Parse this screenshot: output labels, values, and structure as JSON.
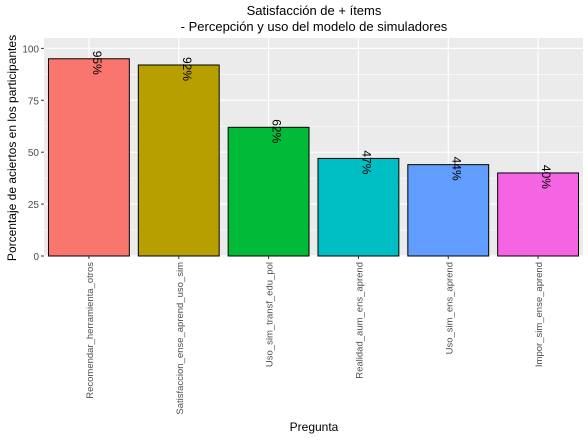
{
  "chart_data": {
    "type": "bar",
    "title_lines": [
      "Satisfacción de + ítems",
      "- Percepción y uso del modelo de simuladores"
    ],
    "xlabel": "Pregunta",
    "ylabel": "Porcentaje de aciertos en los participantes",
    "ylim": [
      0,
      105
    ],
    "yticks": [
      0,
      25,
      50,
      75,
      100
    ],
    "grid": true,
    "legend": "none",
    "categories": [
      "Recomendar_herramienta_otros",
      "Satisfaccion_ense_aprend_uso_sim",
      "Uso_sim_transf_edu_pol",
      "Realidad_aum_ens_aprend",
      "Uso_sim_ens_aprend",
      "Impor_sim_ense_aprend"
    ],
    "values": [
      95,
      92,
      62,
      47,
      44,
      40
    ],
    "data_labels": [
      "95%",
      "92%",
      "62%",
      "47%",
      "44%",
      "40%"
    ],
    "colors": [
      "#F8766D",
      "#B79F00",
      "#00BA38",
      "#00BFC4",
      "#619CFF",
      "#F564E3"
    ],
    "panel_background": "#EBEBEB",
    "grid_color": "#FFFFFF"
  }
}
